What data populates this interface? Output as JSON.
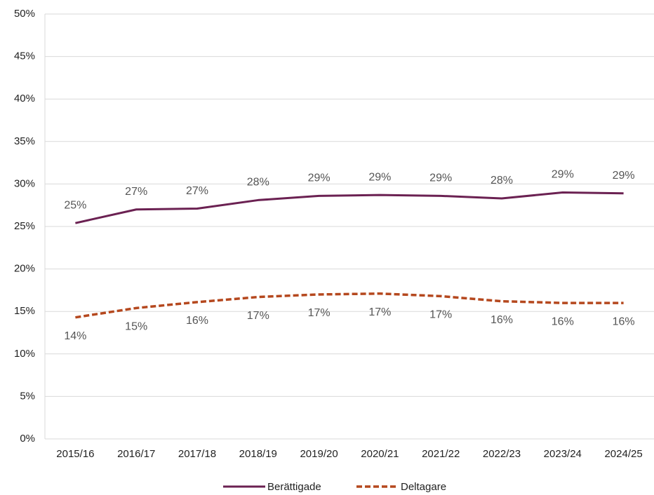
{
  "chart_data": {
    "type": "line",
    "categories": [
      "2015/16",
      "2016/17",
      "2017/18",
      "2018/19",
      "2019/20",
      "2020/21",
      "2021/22",
      "2022/23",
      "2023/24",
      "2024/25"
    ],
    "series": [
      {
        "name": "Berättigade",
        "color": "#6b2152",
        "dash": false,
        "values": [
          25.4,
          27.0,
          27.1,
          28.1,
          28.6,
          28.7,
          28.6,
          28.3,
          29.0,
          28.9
        ],
        "value_labels": [
          "25%",
          "27%",
          "27%",
          "28%",
          "29%",
          "29%",
          "29%",
          "28%",
          "29%",
          "29%"
        ]
      },
      {
        "name": "Deltagare",
        "color": "#b5481e",
        "dash": true,
        "values": [
          14.3,
          15.4,
          16.1,
          16.7,
          17.0,
          17.1,
          16.8,
          16.2,
          16.0,
          16.0
        ],
        "value_labels": [
          "14%",
          "15%",
          "16%",
          "17%",
          "17%",
          "17%",
          "17%",
          "16%",
          "16%",
          "16%"
        ]
      }
    ],
    "ylim": [
      0,
      50
    ],
    "yticks": [
      {
        "value": 0,
        "label": "0%"
      },
      {
        "value": 5,
        "label": "5%"
      },
      {
        "value": 10,
        "label": "10%"
      },
      {
        "value": 15,
        "label": "15%"
      },
      {
        "value": 20,
        "label": "20%"
      },
      {
        "value": 25,
        "label": "25%"
      },
      {
        "value": 30,
        "label": "30%"
      },
      {
        "value": 35,
        "label": "35%"
      },
      {
        "value": 40,
        "label": "40%"
      },
      {
        "value": 45,
        "label": "45%"
      },
      {
        "value": 50,
        "label": "50%"
      }
    ],
    "grid": true,
    "legend": "bottom"
  }
}
